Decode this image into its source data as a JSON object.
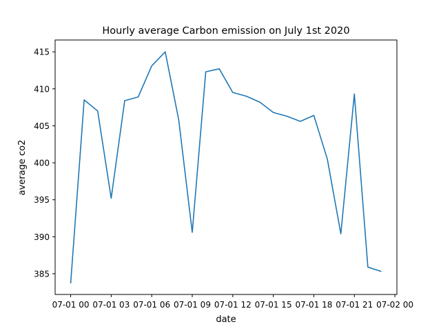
{
  "chart_data": {
    "type": "line",
    "title": "Hourly average Carbon emission on July 1st 2020",
    "xlabel": "date",
    "ylabel": "average co2",
    "x_tick_labels": [
      "07-01 00",
      "07-01 03",
      "07-01 06",
      "07-01 09",
      "07-01 12",
      "07-01 15",
      "07-01 18",
      "07-01 21",
      "07-02 00"
    ],
    "y_ticks": [
      385,
      390,
      395,
      400,
      405,
      410,
      415
    ],
    "x_tick_hours": [
      0,
      3,
      6,
      9,
      12,
      15,
      18,
      21,
      24
    ],
    "xlim": [
      -1.15,
      24.15
    ],
    "ylim": [
      382.2,
      416.6
    ],
    "grid": false,
    "line_color": "#1f77b4",
    "series": [
      {
        "x": [
          0,
          1,
          2,
          3,
          4,
          5,
          6,
          7,
          8,
          9,
          10,
          11,
          12,
          13,
          14,
          15,
          16,
          17,
          18,
          19,
          20,
          21,
          22,
          23
        ],
        "values": [
          383.7,
          408.5,
          407.0,
          395.2,
          408.4,
          408.9,
          413.1,
          415.0,
          405.8,
          390.6,
          412.3,
          412.7,
          409.5,
          409.0,
          408.2,
          406.8,
          406.3,
          405.6,
          406.4,
          400.5,
          390.4,
          409.3,
          385.9,
          385.3
        ]
      }
    ]
  }
}
